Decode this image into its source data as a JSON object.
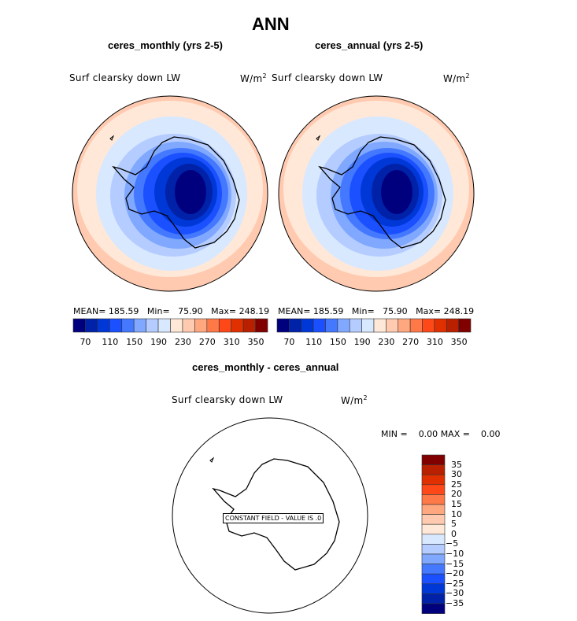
{
  "main_title": "ANN",
  "panels": [
    {
      "title": "ceres_monthly (yrs 2-5)",
      "variable": "Surf clearsky down LW",
      "units": "W/m",
      "units_sup": "2",
      "stats": {
        "mean_label": "MEAN=",
        "mean": "185.59",
        "min_label": "Min=",
        "min": "75.90",
        "max_label": "Max=",
        "max": "248.19"
      }
    },
    {
      "title": "ceres_annual (yrs 2-5)",
      "variable": "Surf clearsky down LW",
      "units": "W/m",
      "units_sup": "2",
      "stats": {
        "mean_label": "MEAN=",
        "mean": "185.59",
        "min_label": "Min=",
        "min": "75.90",
        "max_label": "Max=",
        "max": "248.19"
      }
    }
  ],
  "colorbar_labels": [
    "70",
    "110",
    "150",
    "190",
    "230",
    "270",
    "310",
    "350"
  ],
  "colors": [
    "#00007f",
    "#0022a8",
    "#0038d8",
    "#1a50ff",
    "#4478ff",
    "#80a8ff",
    "#b4ccff",
    "#d8e8ff",
    "#ffe8d8",
    "#ffcab0",
    "#ffa880",
    "#ff7848",
    "#ff4818",
    "#e03000",
    "#b82000",
    "#800000"
  ],
  "diff": {
    "title": "ceres_monthly - ceres_annual",
    "variable": "Surf clearsky down LW",
    "units": "W/m",
    "units_sup": "2",
    "min_label": "MIN =",
    "min": "0.00",
    "max_label": "MAX =",
    "max": "0.00",
    "constant_label": "CONSTANT FIELD - VALUE IS .0",
    "colorbar_labels": [
      "35",
      "30",
      "25",
      "20",
      "15",
      "10",
      "5",
      "0",
      "−5",
      "−10",
      "−15",
      "−20",
      "−25",
      "−30",
      "−35"
    ]
  }
}
